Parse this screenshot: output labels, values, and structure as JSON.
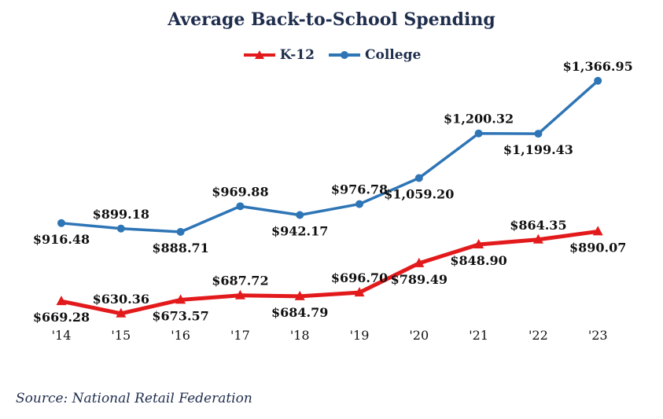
{
  "chart_data": {
    "type": "line",
    "title": "Average Back-to-School Spending",
    "categories": [
      "'14",
      "'15",
      "'16",
      "'17",
      "'18",
      "'19",
      "'20",
      "'21",
      "'22",
      "'23"
    ],
    "series": [
      {
        "name": "K-12",
        "color": "#e31a1c",
        "marker": "triangle",
        "values": [
          669.28,
          630.36,
          673.57,
          687.72,
          684.79,
          696.7,
          789.49,
          848.9,
          864.35,
          890.07
        ],
        "labels": [
          "$669.28",
          "$630.36",
          "$673.57",
          "$687.72",
          "$684.79",
          "$696.70",
          "$789.49",
          "$848.90",
          "$864.35",
          "$890.07"
        ]
      },
      {
        "name": "College",
        "color": "#2e75b6",
        "marker": "circle",
        "values": [
          916.48,
          899.18,
          888.71,
          969.88,
          942.17,
          976.78,
          1059.2,
          1200.32,
          1199.43,
          1366.95
        ],
        "labels": [
          "$916.48",
          "$899.18",
          "$888.71",
          "$969.88",
          "$942.17",
          "$976.78",
          "$1,059.20",
          "$1,200.32",
          "$1,199.43",
          "$1,366.95"
        ]
      }
    ],
    "legend_position": "top-center",
    "grid": false,
    "y_axis_visible": false,
    "source": "Source: National Retail Federation"
  }
}
